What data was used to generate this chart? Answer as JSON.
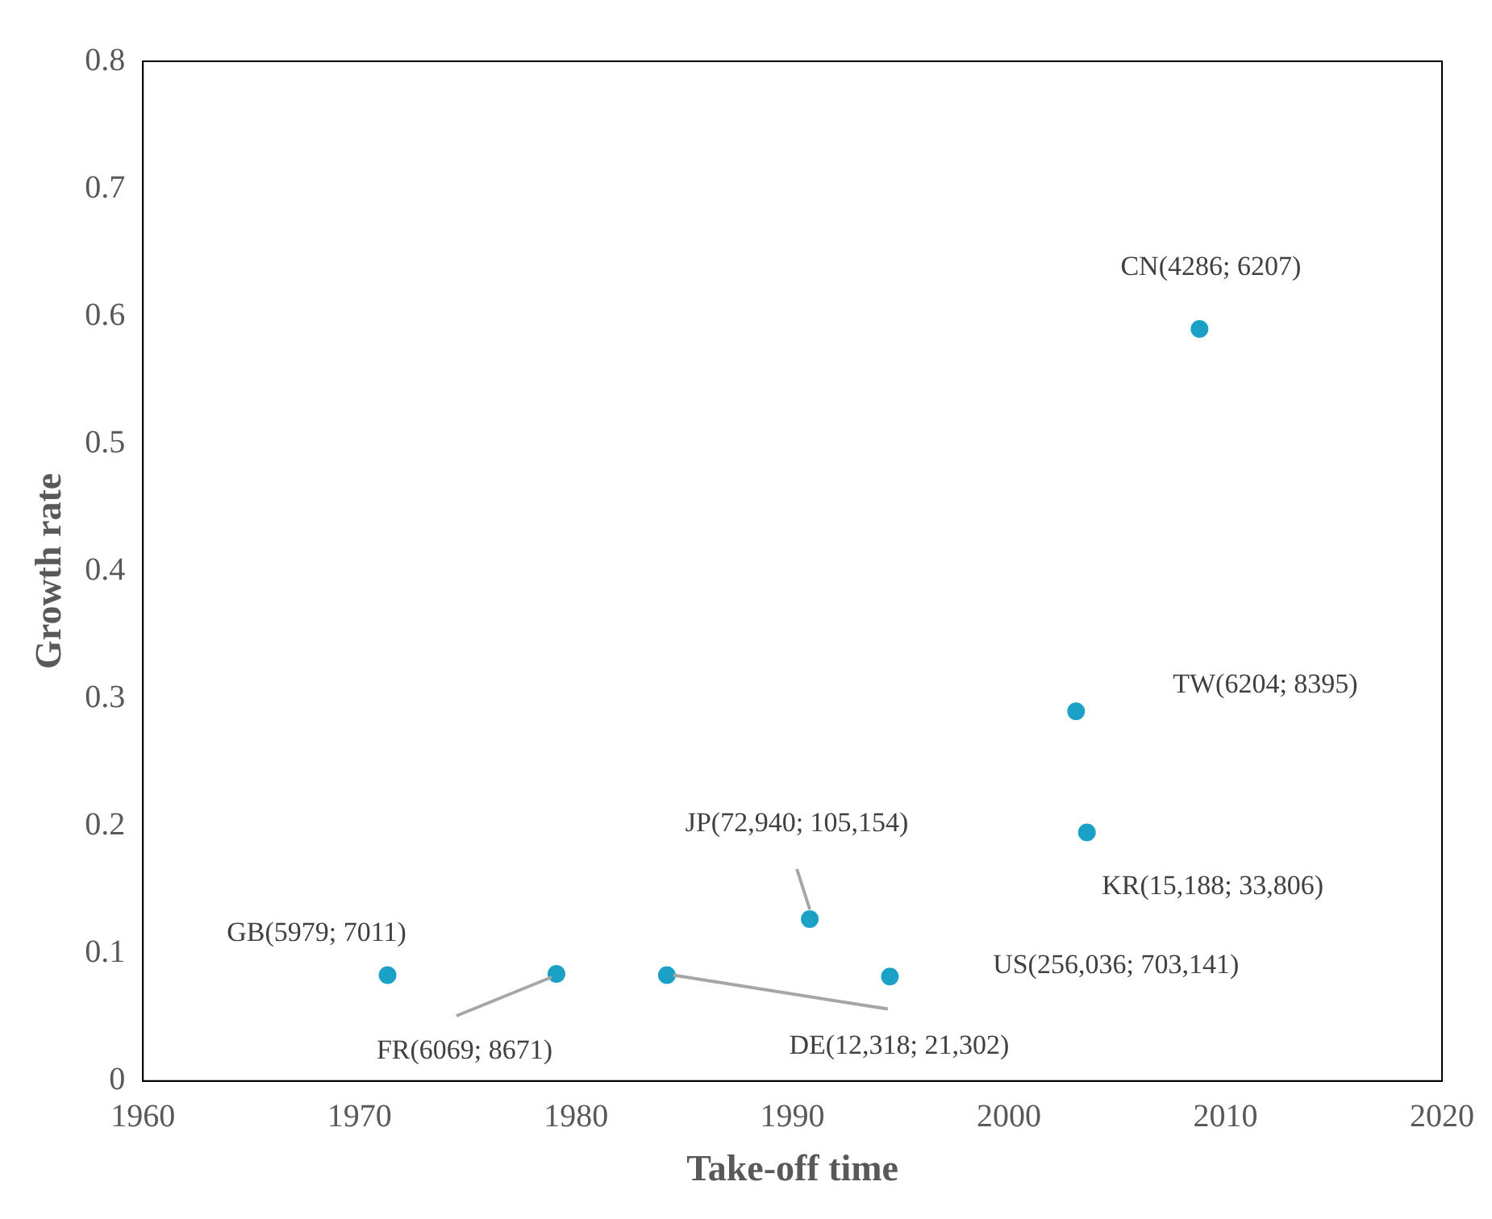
{
  "chart_data": {
    "type": "scatter",
    "xlabel": "Take-off time",
    "ylabel": "Growth rate",
    "x": [
      1971.3,
      1979.1,
      1984.2,
      1994.5,
      1990.8,
      2003.6,
      2003.1,
      2008.8
    ],
    "series": [
      {
        "color": "#1ba1c6",
        "values": [
          0.083,
          0.084,
          0.083,
          0.082,
          0.127,
          0.195,
          0.29,
          0.59
        ]
      }
    ],
    "xlim": [
      1960,
      2020
    ],
    "xticks": [
      1960,
      1970,
      1980,
      1990,
      2000,
      2010,
      2020
    ],
    "ylim": [
      0,
      0.8
    ],
    "yticks": [
      0,
      0.1,
      0.2,
      0.3,
      0.4,
      0.5,
      0.6,
      0.7,
      0.8
    ],
    "grid": false,
    "legend": false,
    "marker": "circle",
    "annotations": [
      {
        "text": "GB(5979; 7011)",
        "x": 1971.3,
        "y": 0.083
      },
      {
        "text": "FR(6069; 8671)",
        "x": 1979.1,
        "y": 0.084
      },
      {
        "text": "DE(12,318; 21,302)",
        "x": 1984.2,
        "y": 0.083
      },
      "US(256,036; 703,141)",
      {
        "text": "JP(72,940; 105,154)",
        "x": 1990.8,
        "y": 0.127
      },
      {
        "text": "KR(15,188; 33,806)",
        "x": 2003.6,
        "y": 0.195
      },
      "TW(6204; 8395)",
      {
        "text": "CN(4286; 6207)",
        "x": 2008.8,
        "y": 0.59
      }
    ]
  }
}
